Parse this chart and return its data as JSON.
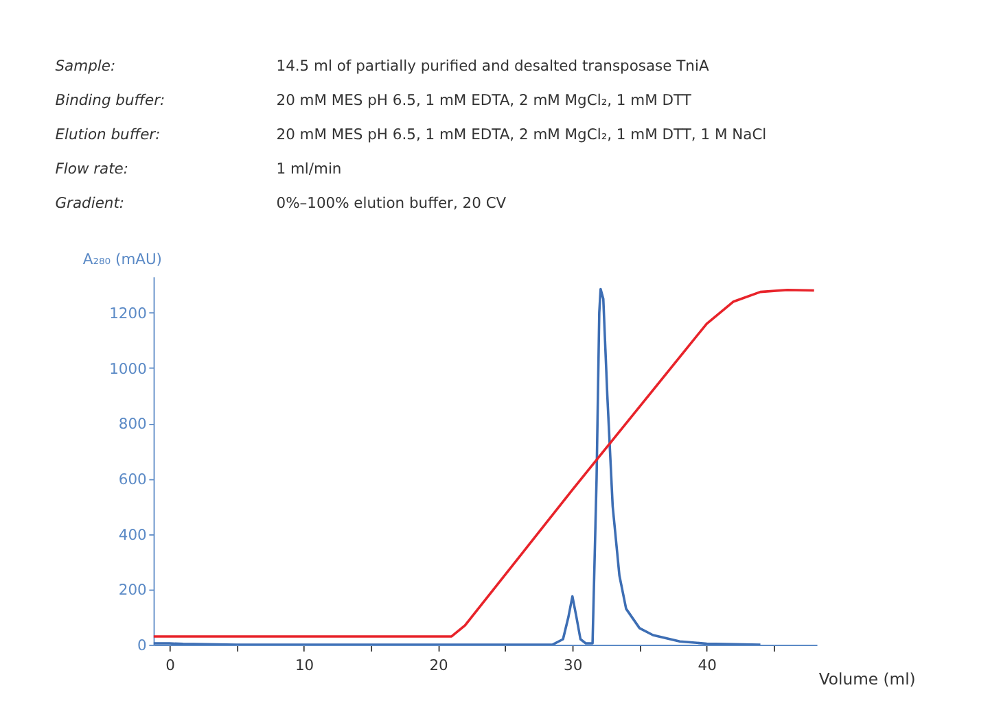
{
  "chart_data": {
    "type": "line",
    "annotations": [
      "Sample:",
      "14.5 ml of partially purified and desalted transposase TniA",
      "Binding buffer:",
      "20 mM MES pH 6.5, 1 mM EDTA, 2 mM MgCl₂, 1 mM DTT",
      "Elution buffer:",
      "20 mM MES pH 6.5, 1 mM EDTA, 2 mM MgCl₂, 1 mM DTT, 1 M NaCl",
      "Flow rate:",
      "1 ml/min",
      "Gradient:",
      "0%–100% elution buffer, 20 CV"
    ],
    "xlabel": "Volume (ml)",
    "ylabel": "A₂₈₀ (mAU)",
    "xlim": [
      -1.2,
      48.2
    ],
    "ylim": [
      0,
      1330
    ],
    "xticks": [
      0,
      {
        "value": 5,
        "label": null
      },
      10,
      {
        "value": 15,
        "label": null
      },
      20,
      {
        "value": 25,
        "label": null
      },
      30,
      {
        "value": 35,
        "label": null
      },
      40,
      {
        "value": 45,
        "label": null
      }
    ],
    "yticks": [
      0,
      200,
      400,
      600,
      800,
      1000,
      1200
    ],
    "grid": false,
    "line_style": "solid",
    "series": [
      {
        "color": "#3d6eb4",
        "x": [
          -1.2,
          0,
          1,
          5,
          20,
          28.5,
          29.3,
          29.7,
          30,
          30.3,
          30.6,
          31,
          31.5,
          31.8,
          32.0,
          32.1,
          32.3,
          32.6,
          33,
          33.5,
          34,
          35,
          36,
          38,
          40,
          44
        ],
        "values": [
          5,
          5,
          3,
          0,
          0,
          0,
          20,
          100,
          175,
          100,
          20,
          5,
          5,
          600,
          1200,
          1285,
          1250,
          900,
          500,
          250,
          130,
          60,
          35,
          12,
          4,
          0
        ]
      },
      {
        "color": "#e8232a",
        "x": [
          -1.2,
          21,
          22,
          30,
          32,
          36,
          40,
          42,
          44,
          46,
          48
        ],
        "values": [
          30,
          30,
          70,
          560,
          680,
          920,
          1160,
          1240,
          1275,
          1282,
          1280
        ]
      }
    ]
  }
}
